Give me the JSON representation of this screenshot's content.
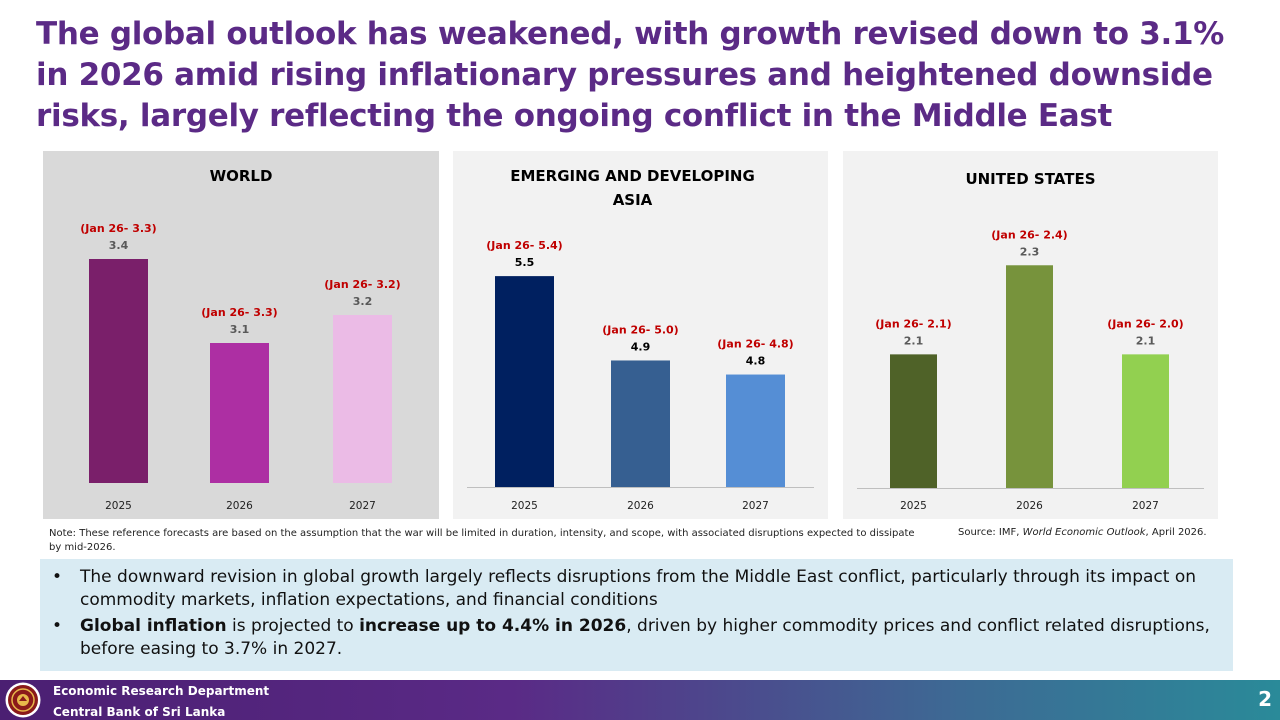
{
  "slide": {
    "title": "The global outlook has weakened, with growth revised down to 3.1% in 2026 amid rising inflationary pressures and heightened downside risks, largely reflecting the ongoing conflict in the Middle East",
    "note": "Note: These reference forecasts are based on the assumption that the war will be limited in duration, intensity, and scope, with associated disruptions expected to dissipate by mid-2026.",
    "source_prefix": "Source: IMF, ",
    "source_italic": "World Economic Outlook",
    "source_suffix": ", April 2026.",
    "page_number": "2"
  },
  "bullets": [
    {
      "text": "The downward revision in global growth largely reflects disruptions from the Middle East conflict, particularly through its impact on commodity markets, inflation expectations, and financial conditions"
    },
    {
      "b1": "Global inflation",
      "t1": " is projected to ",
      "b2": "increase up to 4.4% in 2026",
      "t2": ", driven by higher commodity prices and conflict related disruptions, before easing to 3.7% in 2027."
    }
  ],
  "bullet_symbol": "•",
  "footer": {
    "department": "Economic Research Department",
    "bank": "Central Bank of Sri Lanka"
  },
  "colors": {
    "title": "#5b2a86",
    "jan_label": "#c00000",
    "value_label_world": "#595959",
    "value_label_asia": "#000000",
    "value_label_us": "#595959"
  },
  "chart_data": [
    {
      "type": "bar",
      "title": "WORLD",
      "categories": [
        "2025",
        "2026",
        "2027"
      ],
      "values": [
        3.4,
        3.1,
        3.2
      ],
      "annotations": [
        "(Jan 26- 3.3)",
        "(Jan 26- 3.3)",
        "(Jan 26- 3.2)"
      ],
      "colors": [
        "#7a1f6a",
        "#ad2fa3",
        "#ebbbe6"
      ],
      "background": "#d9d9d9",
      "ylim": [
        2.6,
        3.5
      ]
    },
    {
      "type": "bar",
      "title": "EMERGING AND DEVELOPING ASIA",
      "categories": [
        "2025",
        "2026",
        "2027"
      ],
      "values": [
        5.5,
        4.9,
        4.8
      ],
      "annotations": [
        "(Jan 26- 5.4)",
        "(Jan 26- 5.0)",
        "(Jan 26- 4.8)"
      ],
      "colors": [
        "#002060",
        "#365f91",
        "#558ed5"
      ],
      "background": "#f2f2f2",
      "ylim": [
        4.0,
        5.7
      ]
    },
    {
      "type": "bar",
      "title": "UNITED STATES",
      "categories": [
        "2025",
        "2026",
        "2027"
      ],
      "values": [
        2.1,
        2.3,
        2.1
      ],
      "annotations": [
        "(Jan 26- 2.1)",
        "(Jan 26- 2.4)",
        "(Jan 26- 2.0)"
      ],
      "colors": [
        "#4f6228",
        "#77933c",
        "#92d050"
      ],
      "background": "#f2f2f2",
      "ylim": [
        1.8,
        2.35
      ]
    }
  ]
}
